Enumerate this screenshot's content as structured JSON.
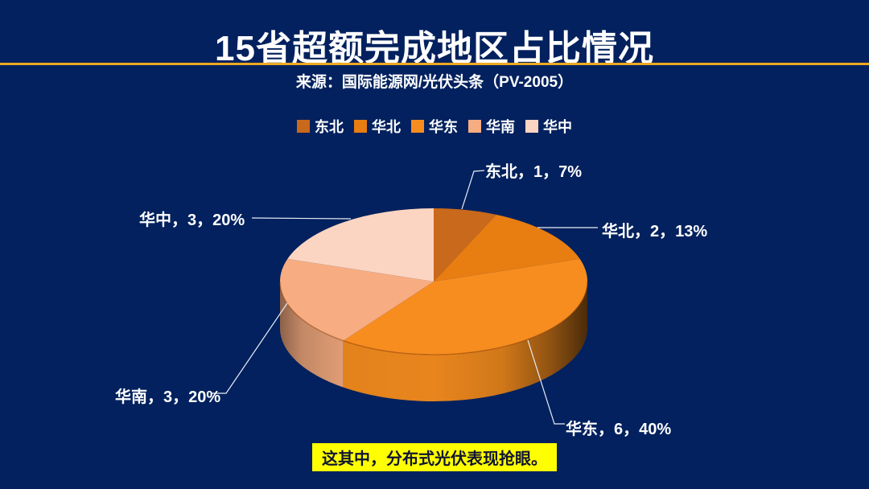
{
  "page": {
    "title": "15省超额完成地区占比情况",
    "source": "来源：国际能源网/光伏头条（PV-2005）",
    "footnote": "这其中，分布式光伏表现抢眼。",
    "background_color": "#02215e",
    "accent_line_color": "#efa820",
    "footnote_bg_color": "#ffff00",
    "footnote_text_color": "#101433"
  },
  "chart_data": {
    "type": "pie",
    "style": "3d",
    "title": "15省超额完成地区占比情况",
    "categories": [
      "东北",
      "华北",
      "华东",
      "华南",
      "华中"
    ],
    "values": [
      1,
      2,
      6,
      3,
      3
    ],
    "total": 15,
    "percents": [
      "7%",
      "13%",
      "40%",
      "20%",
      "20%"
    ],
    "colors": [
      "#c9691b",
      "#e87d12",
      "#f78d1f",
      "#f7ac81",
      "#fcd5c2"
    ],
    "data_labels": [
      "东北，1，7%",
      "华北，2，13%",
      "华东，6，40%",
      "华南，3，20%",
      "华中，3，20%"
    ],
    "legend": [
      "东北",
      "华北",
      "华东",
      "华南",
      "华中"
    ],
    "legend_position": "top",
    "start_angle": 0,
    "direction": "clockwise",
    "label_line_color": "#e9eef8"
  }
}
